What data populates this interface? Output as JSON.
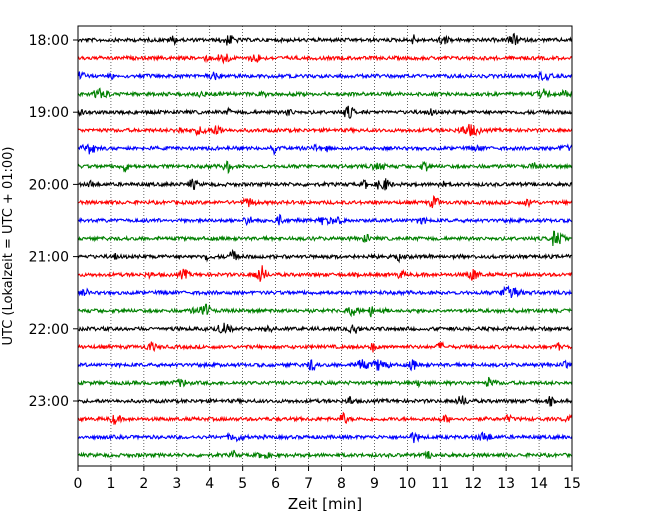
{
  "chart_data": {
    "type": "line",
    "title": "",
    "xlabel": "Zeit  [min]",
    "ylabel": "UTC (Lokalzeit = UTC + 01:00)",
    "xlim": [
      0,
      15
    ],
    "x_ticks": [
      0,
      1,
      2,
      3,
      4,
      5,
      6,
      7,
      8,
      9,
      10,
      11,
      12,
      13,
      14,
      15
    ],
    "y_tick_labels": [
      "18:00",
      "19:00",
      "20:00",
      "21:00",
      "22:00",
      "23:00"
    ],
    "row_interval_min": 15,
    "rows": [
      {
        "time": "18:00",
        "color": "#000000"
      },
      {
        "time": "18:15",
        "color": "#ff0000"
      },
      {
        "time": "18:30",
        "color": "#0000ff"
      },
      {
        "time": "18:45",
        "color": "#008000"
      },
      {
        "time": "19:00",
        "color": "#000000"
      },
      {
        "time": "19:15",
        "color": "#ff0000"
      },
      {
        "time": "19:30",
        "color": "#0000ff"
      },
      {
        "time": "19:45",
        "color": "#008000"
      },
      {
        "time": "20:00",
        "color": "#000000"
      },
      {
        "time": "20:15",
        "color": "#ff0000"
      },
      {
        "time": "20:30",
        "color": "#0000ff"
      },
      {
        "time": "20:45",
        "color": "#008000"
      },
      {
        "time": "21:00",
        "color": "#000000"
      },
      {
        "time": "21:15",
        "color": "#ff0000"
      },
      {
        "time": "21:30",
        "color": "#0000ff"
      },
      {
        "time": "21:45",
        "color": "#008000"
      },
      {
        "time": "22:00",
        "color": "#000000"
      },
      {
        "time": "22:15",
        "color": "#ff0000"
      },
      {
        "time": "22:30",
        "color": "#0000ff"
      },
      {
        "time": "22:45",
        "color": "#008000"
      },
      {
        "time": "23:00",
        "color": "#000000"
      },
      {
        "time": "23:15",
        "color": "#ff0000"
      },
      {
        "time": "23:30",
        "color": "#0000ff"
      },
      {
        "time": "23:45",
        "color": "#008000"
      }
    ],
    "grid": "vertical dotted",
    "legend": "none"
  }
}
